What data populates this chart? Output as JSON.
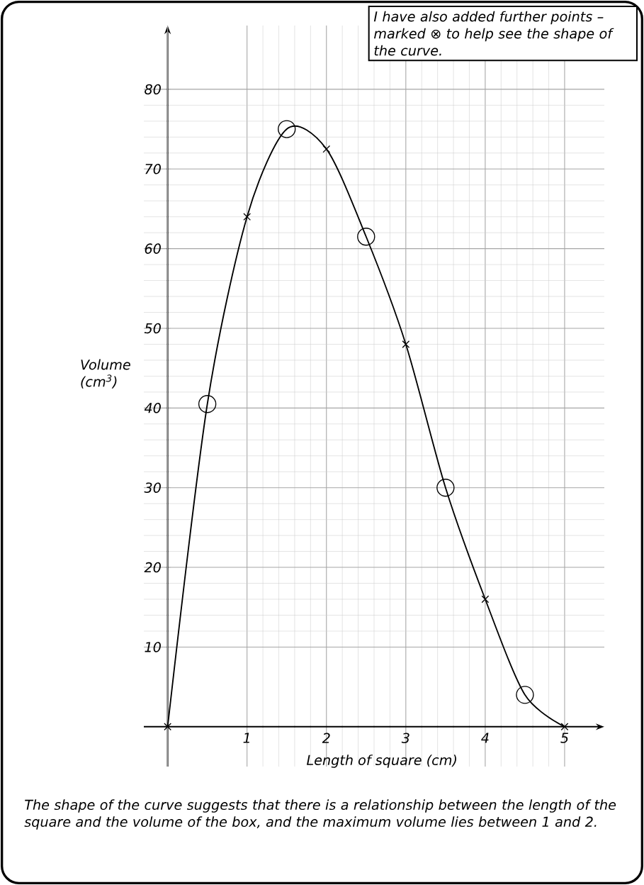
{
  "chart_data": {
    "type": "line",
    "xlabel": "Length of square (cm)",
    "ylabel": "Volume (cm$^{3}$)",
    "xlim": [
      -0.3,
      5.5
    ],
    "ylim": [
      -5,
      88
    ],
    "xticks": [
      1,
      2,
      3,
      4,
      5
    ],
    "yticks": [
      10,
      20,
      30,
      40,
      50,
      60,
      70,
      80
    ],
    "grid": true,
    "series": [
      {
        "color": "#000000",
        "marker": "none",
        "line_style": "solid",
        "x": [
          0,
          0.5,
          1,
          1.5,
          2,
          2.5,
          3,
          3.5,
          4,
          4.5,
          5
        ],
        "values": [
          0,
          40.5,
          64,
          75,
          72.5,
          61.5,
          48,
          30,
          16,
          4,
          0
        ]
      },
      {
        "type": "scatter",
        "color": "#000000",
        "marker": "cross",
        "x": [
          0,
          1,
          2,
          3,
          4,
          5
        ],
        "values": [
          0,
          64,
          72.5,
          48,
          16,
          0
        ]
      },
      {
        "type": "scatter",
        "color": "#000000",
        "marker": "circle",
        "x": [
          0.5,
          1.5,
          2.5,
          3.5,
          4.5
        ],
        "values": [
          40.5,
          75,
          61.5,
          30,
          4
        ]
      }
    ],
    "annotations": [
      "I have also added further points – marked ⊗ to help see the shape of the curve.",
      "The shape of the curve suggests that there is a relationship between the length of the square and the volume of the box, and the maximum volume lies between 1 and 2."
    ]
  }
}
